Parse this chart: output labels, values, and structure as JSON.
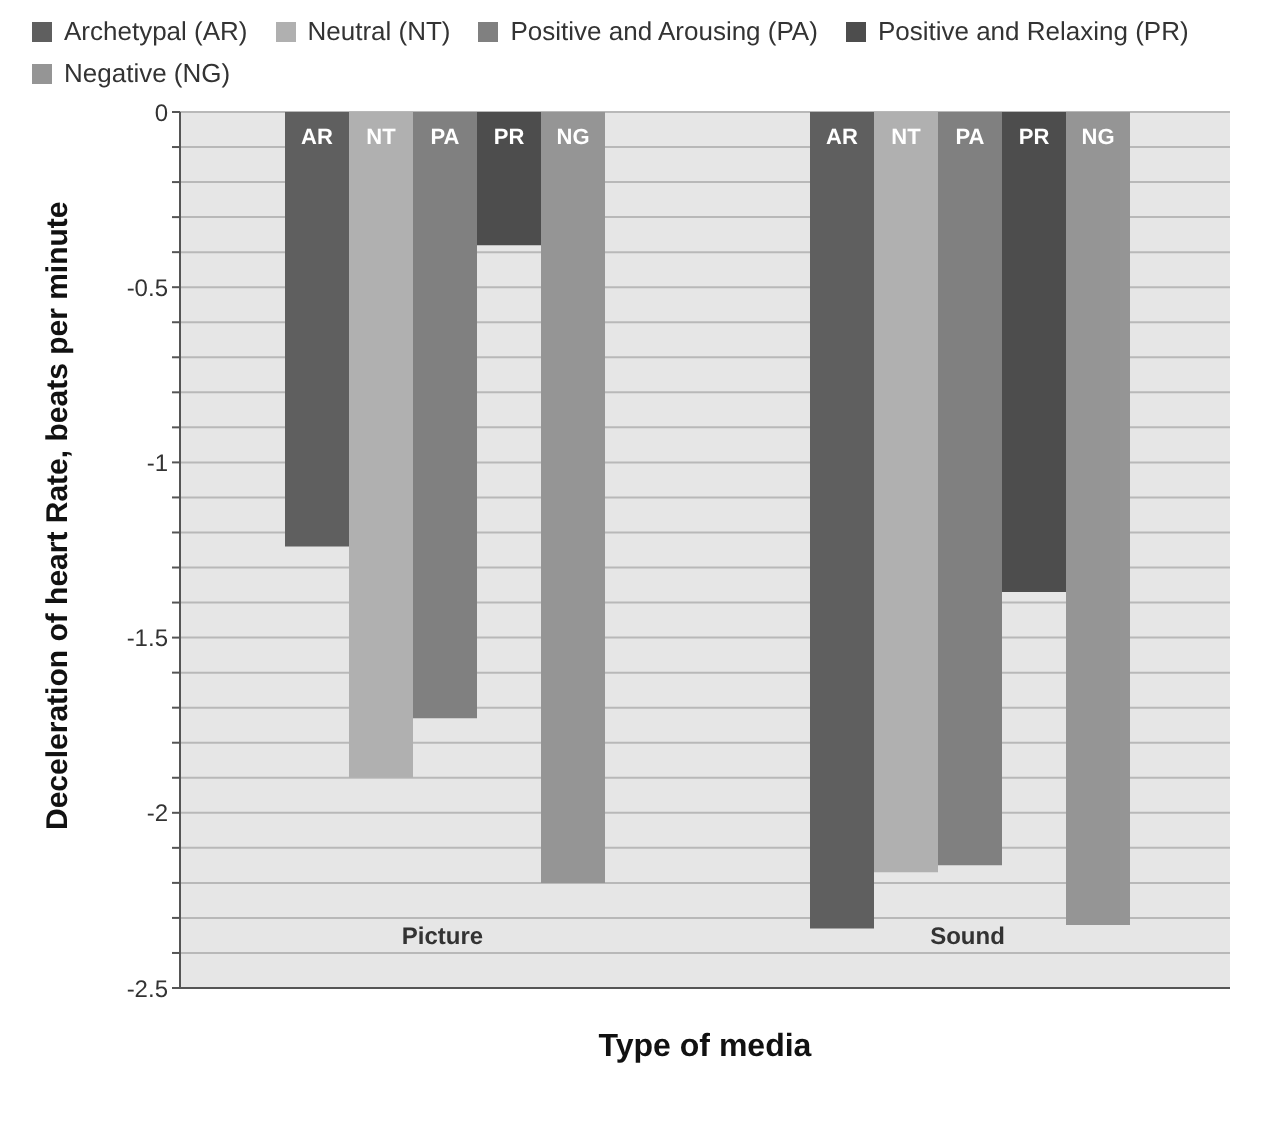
{
  "chart_data": {
    "type": "bar",
    "xlabel": "Type of media",
    "ylabel": "Deceleration of heart Rate, beats per minute",
    "categories": [
      "Picture",
      "Sound"
    ],
    "series": [
      {
        "name": "Archetypal (AR)",
        "color": "#5f5f5f",
        "values": [
          -1.24,
          -2.33
        ],
        "value_labels": [
          "AR",
          "AR"
        ]
      },
      {
        "name": "Neutral (NT)",
        "color": "#b0b0b0",
        "values": [
          -1.9,
          -2.17
        ],
        "value_labels": [
          "NT",
          "NT"
        ]
      },
      {
        "name": "Positive and Arousing (PA)",
        "color": "#808080",
        "values": [
          -1.73,
          -2.15
        ],
        "value_labels": [
          "PA",
          "PA"
        ]
      },
      {
        "name": "Positive and Relaxing (PR)",
        "color": "#4d4d4d",
        "values": [
          -0.38,
          -1.37
        ],
        "value_labels": [
          "PR",
          "PR"
        ]
      },
      {
        "name": "Negative (NG)",
        "color": "#959595",
        "values": [
          -2.2,
          -2.32
        ],
        "value_labels": [
          "NG",
          "NG"
        ]
      }
    ],
    "ylim": [
      -2.5,
      0
    ],
    "yticks": [
      -2.5,
      {
        "value": -2.4,
        "label": null
      },
      {
        "value": -2.3,
        "label": null
      },
      {
        "value": -2.2,
        "label": null
      },
      {
        "value": -2.1,
        "label": null
      },
      -2,
      {
        "value": -1.9,
        "label": null
      },
      {
        "value": -1.8,
        "label": null
      },
      {
        "value": -1.7,
        "label": null
      },
      {
        "value": -1.6,
        "label": null
      },
      -1.5,
      {
        "value": -1.4,
        "label": null
      },
      {
        "value": -1.3,
        "label": null
      },
      {
        "value": -1.2,
        "label": null
      },
      {
        "value": -1.1,
        "label": null
      },
      -1,
      {
        "value": -0.9,
        "label": null
      },
      {
        "value": -0.8,
        "label": null
      },
      {
        "value": -0.7,
        "label": null
      },
      {
        "value": -0.6,
        "label": null
      },
      -0.5,
      {
        "value": -0.4,
        "label": null
      },
      {
        "value": -0.3,
        "label": null
      },
      {
        "value": -0.2,
        "label": null
      },
      {
        "value": -0.1,
        "label": null
      },
      0
    ],
    "grid": "y",
    "legend": "top"
  }
}
